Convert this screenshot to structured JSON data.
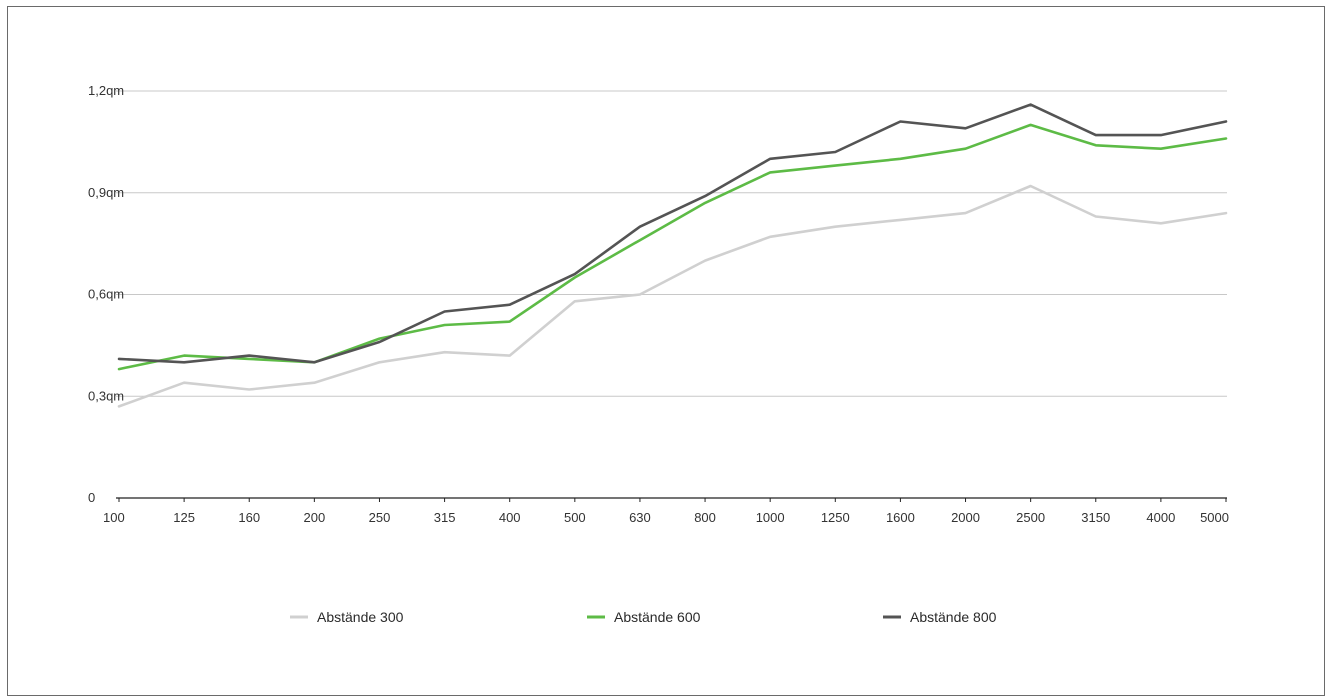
{
  "chart_data": {
    "type": "line",
    "title": "",
    "xlabel": "",
    "ylabel": "",
    "categories": [
      "100",
      "125",
      "160",
      "200",
      "250",
      "315",
      "400",
      "500",
      "630",
      "800",
      "1000",
      "1250",
      "1600",
      "2000",
      "2500",
      "3150",
      "4000",
      "5000"
    ],
    "y_ticks": [
      {
        "value": 0,
        "label": "0"
      },
      {
        "value": 0.3,
        "label": "0,3qm"
      },
      {
        "value": 0.6,
        "label": "0,6qm"
      },
      {
        "value": 0.9,
        "label": "0,9qm"
      },
      {
        "value": 1.2,
        "label": "1,2qm"
      }
    ],
    "ylim": [
      0,
      1.2
    ],
    "grid": true,
    "legend_position": "bottom",
    "series": [
      {
        "name": "Abstände 300",
        "color": "#d0d0d0",
        "values": [
          0.27,
          0.34,
          0.32,
          0.34,
          0.4,
          0.43,
          0.42,
          0.58,
          0.6,
          0.7,
          0.77,
          0.8,
          0.82,
          0.84,
          0.92,
          0.83,
          0.81,
          0.84
        ]
      },
      {
        "name": "Abstände 600",
        "color": "#5dbb46",
        "values": [
          0.38,
          0.42,
          0.41,
          0.4,
          0.47,
          0.51,
          0.52,
          0.65,
          0.76,
          0.87,
          0.96,
          0.98,
          1.0,
          1.03,
          1.1,
          1.04,
          1.03,
          1.06
        ]
      },
      {
        "name": "Abstände 800",
        "color": "#545454",
        "values": [
          0.41,
          0.4,
          0.42,
          0.4,
          0.46,
          0.55,
          0.57,
          0.66,
          0.8,
          0.89,
          1.0,
          1.02,
          1.11,
          1.09,
          1.16,
          1.07,
          1.07,
          1.11
        ]
      }
    ]
  }
}
